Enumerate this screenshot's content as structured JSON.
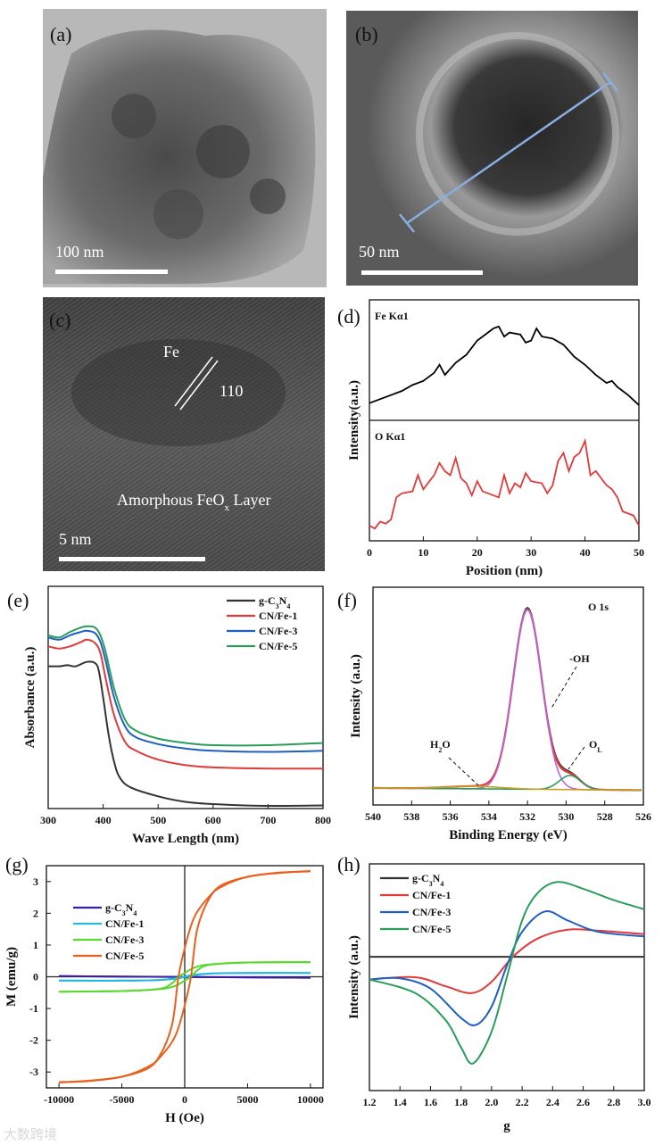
{
  "images": {
    "a": {
      "panel_label": "(a)",
      "scale_bar": "100 nm"
    },
    "b": {
      "panel_label": "(b)",
      "scale_bar": "50 nm"
    },
    "c": {
      "panel_label": "(c)",
      "scale_bar": "5 nm",
      "phase_label": "Fe",
      "plane_label": "110",
      "layer_label_main": "Amorphous FeO",
      "layer_label_sub": "x",
      "layer_label_end": " Layer"
    }
  },
  "watermark": "大数跨境",
  "chart_data": [
    {
      "panel": "d",
      "panel_label": "(d)",
      "type": "line",
      "xlabel": "Position (nm)",
      "ylabel": "Intensity(a.u.)",
      "xlim": [
        0,
        50
      ],
      "xticks": [
        0,
        10,
        20,
        30,
        40,
        50
      ],
      "series": [
        {
          "name": "Fe Kα1",
          "color": "#000000",
          "ylim": [
            0,
            100
          ],
          "x": [
            0,
            2,
            4,
            6,
            8,
            10,
            12,
            13,
            14,
            16,
            18,
            20,
            22,
            23,
            24,
            25,
            26,
            28,
            29,
            30,
            31,
            32,
            34,
            36,
            38,
            40,
            42,
            44,
            45,
            46,
            48,
            50
          ],
          "y": [
            10,
            14,
            18,
            22,
            28,
            32,
            40,
            48,
            38,
            50,
            58,
            72,
            80,
            84,
            86,
            76,
            80,
            78,
            70,
            72,
            84,
            76,
            74,
            68,
            56,
            48,
            38,
            30,
            32,
            26,
            18,
            8
          ]
        },
        {
          "name": "O Kα1",
          "color": "#e03a3a",
          "ylim": [
            0,
            100
          ],
          "x": [
            0,
            1,
            2,
            3,
            4,
            5,
            6,
            8,
            9,
            10,
            12,
            13,
            14,
            15,
            16,
            17,
            18,
            19,
            20,
            21,
            22,
            24,
            25,
            26,
            27,
            28,
            29,
            30,
            32,
            33,
            34,
            35,
            36,
            37,
            38,
            39,
            40,
            41,
            42,
            44,
            45,
            46,
            47,
            48,
            49,
            50
          ],
          "y": [
            8,
            5,
            12,
            10,
            14,
            36,
            40,
            42,
            58,
            44,
            58,
            70,
            62,
            58,
            75,
            55,
            50,
            38,
            52,
            42,
            40,
            36,
            58,
            40,
            50,
            46,
            60,
            52,
            50,
            40,
            48,
            72,
            80,
            62,
            76,
            80,
            92,
            58,
            62,
            48,
            44,
            36,
            22,
            20,
            18,
            8
          ]
        }
      ]
    },
    {
      "panel": "e",
      "panel_label": "(e)",
      "type": "line",
      "xlabel": "Wave Length (nm)",
      "ylabel": "Absorbance (a.u.)",
      "xlim": [
        300,
        800
      ],
      "ylim": [
        0,
        1
      ],
      "xticks": [
        300,
        400,
        500,
        600,
        700,
        800
      ],
      "legend": "top-right",
      "series": [
        {
          "name": "g-C3N4",
          "color": "#333333",
          "x": [
            300,
            320,
            335,
            350,
            370,
            385,
            392,
            400,
            410,
            420,
            430,
            450,
            500,
            550,
            600,
            700,
            800
          ],
          "y": [
            0.64,
            0.64,
            0.645,
            0.64,
            0.66,
            0.655,
            0.62,
            0.5,
            0.33,
            0.21,
            0.14,
            0.095,
            0.055,
            0.03,
            0.02,
            0.012,
            0.014
          ]
        },
        {
          "name": "CN/Fe-1",
          "color": "#e03a3a",
          "x": [
            300,
            320,
            340,
            360,
            370,
            385,
            395,
            405,
            420,
            440,
            460,
            500,
            550,
            600,
            700,
            800
          ],
          "y": [
            0.73,
            0.72,
            0.73,
            0.75,
            0.76,
            0.745,
            0.7,
            0.58,
            0.42,
            0.3,
            0.26,
            0.22,
            0.195,
            0.185,
            0.18,
            0.18
          ]
        },
        {
          "name": "CN/Fe-3",
          "color": "#1f5fbf",
          "x": [
            300,
            320,
            340,
            360,
            370,
            385,
            395,
            405,
            420,
            440,
            460,
            500,
            550,
            600,
            700,
            800
          ],
          "y": [
            0.77,
            0.76,
            0.78,
            0.795,
            0.8,
            0.79,
            0.75,
            0.66,
            0.5,
            0.37,
            0.32,
            0.29,
            0.27,
            0.26,
            0.255,
            0.26
          ]
        },
        {
          "name": "CN/Fe-5",
          "color": "#2a9d5c",
          "x": [
            300,
            320,
            340,
            360,
            370,
            385,
            395,
            405,
            420,
            440,
            460,
            500,
            550,
            600,
            700,
            800
          ],
          "y": [
            0.78,
            0.77,
            0.795,
            0.815,
            0.82,
            0.815,
            0.78,
            0.7,
            0.54,
            0.4,
            0.35,
            0.315,
            0.295,
            0.285,
            0.285,
            0.295
          ]
        }
      ]
    },
    {
      "panel": "f",
      "panel_label": "(f)",
      "type": "line",
      "title": "O 1s",
      "xlabel": "Binding Energy (eV)",
      "ylabel": "Intensity (a.u.)",
      "xlim": [
        540,
        526
      ],
      "ylim": [
        0,
        1
      ],
      "xticks": [
        540,
        538,
        536,
        534,
        532,
        530,
        528,
        526
      ],
      "baseline": [
        0.078,
        0.068
      ],
      "peaks": [
        {
          "name": "-OH",
          "center": 532.0,
          "fwhm": 1.75,
          "height": 0.825,
          "color": "#b06ad8"
        },
        {
          "name": "OL",
          "label_main": "O",
          "label_sub": "L",
          "center": 529.8,
          "fwhm": 1.3,
          "height": 0.065,
          "color": "#2a9d5c"
        },
        {
          "name": "H2O",
          "label_main": "H",
          "label_sub": "2",
          "label_end": "O",
          "center": 534.8,
          "fwhm": 3.2,
          "height": 0.012,
          "color": "#c8a020"
        }
      ],
      "fit_color": "#e03a3a",
      "raw_color": "#333333",
      "annotations": [
        "-OH",
        "OL",
        "H2O"
      ]
    },
    {
      "panel": "g",
      "panel_label": "(g)",
      "type": "line",
      "xlabel": "H (Oe)",
      "ylabel": "M (emu/g)",
      "xlim": [
        -11000,
        11000
      ],
      "ylim": [
        -3.5,
        3.5
      ],
      "xticks": [
        -10000,
        -5000,
        0,
        5000,
        10000
      ],
      "yticks": [
        -3,
        -2,
        -1,
        0,
        1,
        2,
        3
      ],
      "legend": "top-left",
      "series": [
        {
          "name": "g-C3N4",
          "color": "#3a1fa0",
          "x": [
            -10000,
            10000
          ],
          "y_descending": [
            0.02,
            -0.03
          ],
          "y_ascending": [
            0.02,
            -0.03
          ]
        },
        {
          "name": "CN/Fe-1",
          "color": "#2ab8e0",
          "x": [
            -10000,
            -5000,
            -2000,
            -500,
            0,
            500,
            2000,
            5000,
            10000
          ],
          "y_descending": [
            -0.12,
            -0.12,
            -0.1,
            -0.03,
            0.0,
            0.05,
            0.1,
            0.12,
            0.12
          ],
          "y_ascending": [
            -0.12,
            -0.12,
            -0.1,
            -0.05,
            0.0,
            0.03,
            0.1,
            0.12,
            0.12
          ]
        },
        {
          "name": "CN/Fe-3",
          "color": "#5ad830",
          "x": [
            -10000,
            -5000,
            -2000,
            -1000,
            -500,
            0,
            500,
            1000,
            2000,
            5000,
            10000
          ],
          "y_descending": [
            -0.47,
            -0.45,
            -0.38,
            -0.2,
            0.0,
            0.12,
            0.24,
            0.32,
            0.39,
            0.45,
            0.46
          ],
          "y_ascending": [
            -0.47,
            -0.45,
            -0.39,
            -0.32,
            -0.24,
            -0.12,
            0.0,
            0.2,
            0.38,
            0.45,
            0.46
          ]
        },
        {
          "name": "CN/Fe-5",
          "color": "#e8601c",
          "x": [
            -10000,
            -7500,
            -5000,
            -3000,
            -2000,
            -1000,
            -500,
            0,
            500,
            1000,
            2000,
            3000,
            5000,
            7500,
            10000
          ],
          "y_descending": [
            -3.33,
            -3.27,
            -3.15,
            -2.85,
            -2.5,
            -1.5,
            0.0,
            0.9,
            1.6,
            2.05,
            2.55,
            2.9,
            3.15,
            3.28,
            3.32
          ],
          "y_ascending": [
            -3.32,
            -3.28,
            -3.15,
            -2.9,
            -2.55,
            -2.05,
            -1.6,
            -0.9,
            0.0,
            1.5,
            2.5,
            2.85,
            3.15,
            3.27,
            3.33
          ]
        }
      ]
    },
    {
      "panel": "h",
      "panel_label": "(h)",
      "type": "line",
      "xlabel": "g",
      "ylabel": "Intensity (a.u.)",
      "xlim": [
        1.2,
        3.0
      ],
      "ylim": [
        0,
        100
      ],
      "xticks": [
        1.2,
        1.4,
        1.6,
        1.8,
        2.0,
        2.2,
        2.4,
        2.6,
        2.8,
        3.0
      ],
      "legend": "top-left",
      "series": [
        {
          "name": "g-C3N4",
          "color": "#333333",
          "x": [
            1.2,
            3.0
          ],
          "y": [
            59,
            59
          ]
        },
        {
          "name": "CN/Fe-1",
          "color": "#e03a3a",
          "x": [
            1.2,
            1.5,
            1.7,
            1.87,
            2.0,
            2.14,
            2.3,
            2.5,
            2.7,
            3.0
          ],
          "y": [
            49,
            50,
            46,
            43,
            48,
            59,
            67,
            71,
            70.5,
            69
          ]
        },
        {
          "name": "CN/Fe-3",
          "color": "#1f5fbf",
          "x": [
            1.2,
            1.4,
            1.6,
            1.8,
            1.9,
            2.0,
            2.1,
            2.2,
            2.35,
            2.5,
            2.7,
            3.0
          ],
          "y": [
            49,
            49.5,
            45,
            32,
            29,
            37,
            55,
            70,
            79,
            75,
            70,
            68
          ]
        },
        {
          "name": "CN/Fe-5",
          "color": "#2a9d5c",
          "x": [
            1.2,
            1.5,
            1.7,
            1.8,
            1.88,
            2.0,
            2.1,
            2.2,
            2.3,
            2.43,
            2.6,
            2.8,
            3.0
          ],
          "y": [
            49,
            43,
            31,
            19,
            12,
            26,
            50,
            75,
            87,
            92,
            89,
            84,
            80
          ]
        }
      ]
    }
  ]
}
